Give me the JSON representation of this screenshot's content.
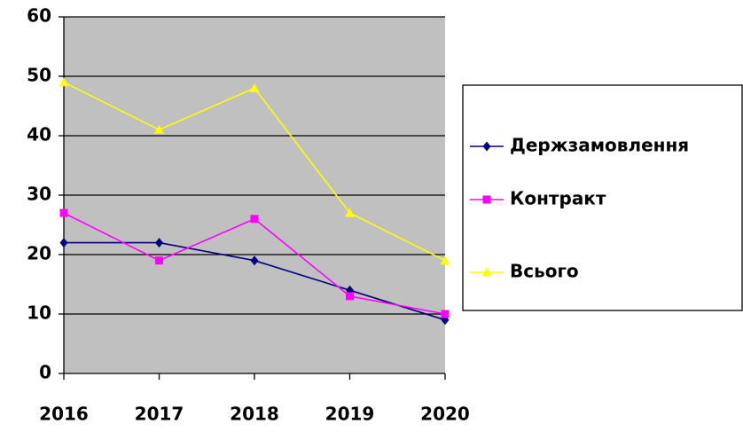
{
  "chart_data": {
    "type": "line",
    "categories": [
      "2016",
      "2017",
      "2018",
      "2019",
      "2020"
    ],
    "series": [
      {
        "name": "Держзамовлення",
        "color": "#000080",
        "marker": "diamond",
        "values": [
          22,
          22,
          19,
          14,
          9
        ]
      },
      {
        "name": "Контракт",
        "color": "#ff00ff",
        "marker": "square",
        "values": [
          27,
          19,
          26,
          13,
          10
        ]
      },
      {
        "name": "Всього",
        "color": "#ffff00",
        "marker": "triangle",
        "values": [
          49,
          41,
          48,
          27,
          19
        ]
      }
    ],
    "ylim": [
      0,
      60
    ],
    "yticks": [
      0,
      10,
      20,
      30,
      40,
      50,
      60
    ],
    "grid": true,
    "legend": "right",
    "plot_background": "#c0c0c0"
  }
}
